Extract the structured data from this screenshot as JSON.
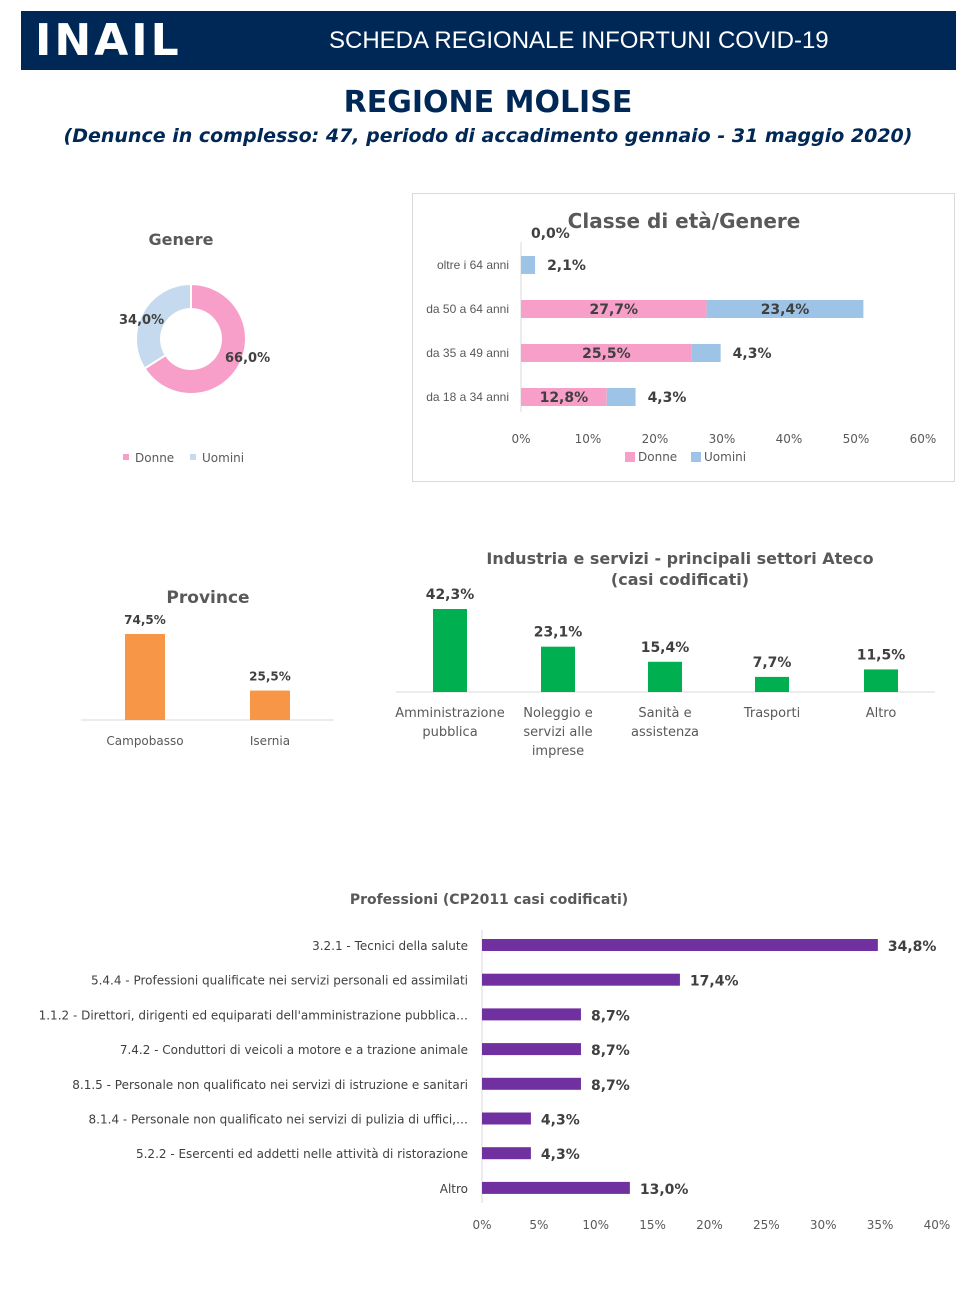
{
  "header": {
    "logo": "INAIL",
    "title": "SCHEDA REGIONALE INFORTUNI COVID-19"
  },
  "page": {
    "title": "REGIONE MOLISE",
    "subtitle": "(Denunce in complesso: 47, periodo di accadimento gennaio - 31 maggio 2020)"
  },
  "chart_data": [
    {
      "id": "genere",
      "type": "pie",
      "title": "Genere",
      "labels": [
        "Donne",
        "Uomini"
      ],
      "values": [
        66.0,
        34.0
      ],
      "data_labels": [
        "66,0%",
        "34,0%"
      ],
      "colors": [
        "#f79fc9",
        "#c5daee"
      ],
      "legend": "bottom"
    },
    {
      "id": "eta-genere",
      "type": "bar",
      "orientation": "horizontal",
      "stacked": true,
      "title": "Classe di età/Genere",
      "categories": [
        "oltre i 64 anni",
        "da 50 a 64 anni",
        "da 35 a 49 anni",
        "da 18 a 34 anni"
      ],
      "series": [
        {
          "name": "Donne",
          "color": "#f79fc9",
          "values": [
            0.0,
            27.7,
            25.5,
            12.8
          ],
          "labels": [
            "0,0%",
            "27,7%",
            "25,5%",
            "12,8%"
          ]
        },
        {
          "name": "Uomini",
          "color": "#9dc3e6",
          "values": [
            2.1,
            23.4,
            4.3,
            4.3
          ],
          "labels": [
            "2,1%",
            "23,4%",
            "4,3%",
            "4,3%"
          ]
        }
      ],
      "xlim": [
        0,
        60
      ],
      "xticks": [
        "0%",
        "10%",
        "20%",
        "30%",
        "40%",
        "50%",
        "60%"
      ],
      "legend": "bottom"
    },
    {
      "id": "province",
      "type": "bar",
      "title": "Province",
      "categories": [
        "Campobasso",
        "Isernia"
      ],
      "values": [
        74.5,
        25.5
      ],
      "labels": [
        "74,5%",
        "25,5%"
      ],
      "color": "#f79646"
    },
    {
      "id": "ateco",
      "type": "bar",
      "title": "Industria e servizi - principali settori Ateco",
      "subtitle": "(casi codificati)",
      "categories": [
        "Amministrazione pubblica",
        "Noleggio e servizi alle imprese",
        "Sanità e assistenza",
        "Trasporti",
        "Altro"
      ],
      "category_lines": [
        [
          "Amministrazione",
          "pubblica"
        ],
        [
          "Noleggio e",
          "servizi alle",
          "imprese"
        ],
        [
          "Sanità e",
          "assistenza"
        ],
        [
          "Trasporti"
        ],
        [
          "Altro"
        ]
      ],
      "values": [
        42.3,
        23.1,
        15.4,
        7.7,
        11.5
      ],
      "labels": [
        "42,3%",
        "23,1%",
        "15,4%",
        "7,7%",
        "11,5%"
      ],
      "color": "#00b050"
    },
    {
      "id": "professioni",
      "type": "bar",
      "orientation": "horizontal",
      "title": "Professioni (CP2011 casi codificati)",
      "categories": [
        "3.2.1 - Tecnici della salute",
        "5.4.4 - Professioni qualificate nei servizi personali ed assimilati",
        "1.1.2 - Direttori, dirigenti ed equiparati dell'amministrazione pubblica…",
        "7.4.2 - Conduttori di veicoli a motore e a trazione animale",
        "8.1.5 - Personale non qualificato nei servizi di istruzione e sanitari",
        "8.1.4 - Personale non qualificato nei servizi di pulizia di uffici,…",
        "5.2.2 - Esercenti ed addetti nelle attività di ristorazione",
        "Altro"
      ],
      "values": [
        34.8,
        17.4,
        8.7,
        8.7,
        8.7,
        4.3,
        4.3,
        13.0
      ],
      "labels": [
        "34,8%",
        "17,4%",
        "8,7%",
        "8,7%",
        "8,7%",
        "4,3%",
        "4,3%",
        "13,0%"
      ],
      "color": "#7030a0",
      "xlim": [
        0,
        40
      ],
      "xticks": [
        "0%",
        "5%",
        "10%",
        "15%",
        "20%",
        "25%",
        "30%",
        "35%",
        "40%"
      ]
    }
  ]
}
